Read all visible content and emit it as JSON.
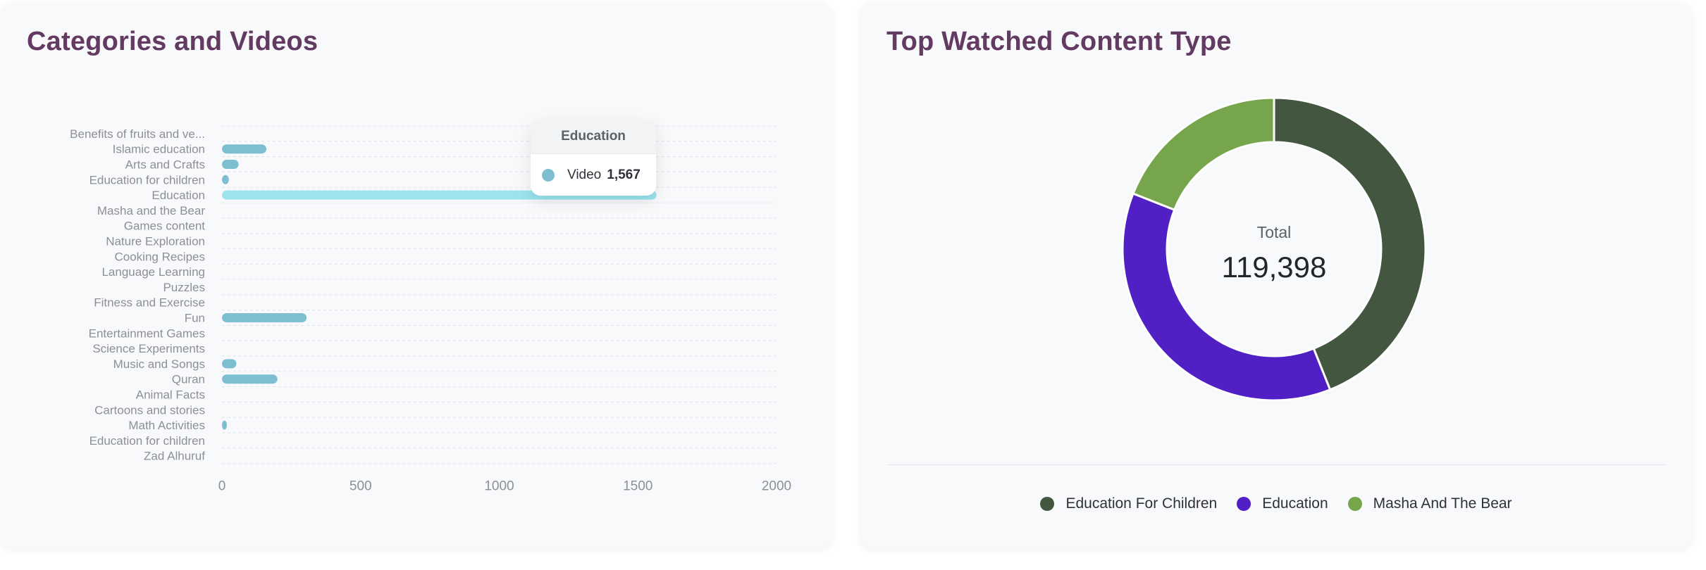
{
  "left_card": {
    "title": "Categories and Videos"
  },
  "right_card": {
    "title": "Top Watched Content Type"
  },
  "tooltip": {
    "title": "Education",
    "series": "Video",
    "value": "1,567",
    "color": "#7dbfd0"
  },
  "chart_data": [
    {
      "type": "bar",
      "orientation": "horizontal",
      "categories": [
        "Benefits of fruits and ve...",
        "Islamic education",
        "Arts and Crafts",
        "Education for children",
        "Education",
        "Masha and the Bear",
        "Games content",
        "Nature Exploration",
        "Cooking Recipes",
        "Language Learning",
        "Puzzles",
        "Fitness and Exercise",
        "Fun",
        "Entertainment Games",
        "Science Experiments",
        "Music and Songs",
        "Quran",
        "Animal Facts",
        "Cartoons and stories",
        "Math Activities",
        "Education for children",
        "Zad Alhuruf"
      ],
      "series": [
        {
          "name": "Video",
          "color": "#7dbfd0",
          "highlight_color": "#9be3ef",
          "values": [
            0,
            160,
            60,
            25,
            1567,
            0,
            0,
            0,
            0,
            0,
            0,
            0,
            305,
            0,
            0,
            52,
            200,
            0,
            0,
            12,
            0,
            0
          ]
        }
      ],
      "highlighted_index": 4,
      "xlim": [
        0,
        2000
      ],
      "xticks": [
        0,
        500,
        1000,
        1500,
        2000
      ],
      "grid": true
    },
    {
      "type": "pie",
      "style": "donut",
      "center_label": "Total",
      "center_value": "119,398",
      "slices": [
        {
          "label": "Education For Children",
          "value": 52500,
          "color": "#435740"
        },
        {
          "label": "Education",
          "value": 44200,
          "color": "#5120c4"
        },
        {
          "label": "Masha And The Bear",
          "value": 22698,
          "color": "#76a54c"
        }
      ],
      "legend_position": "bottom"
    }
  ]
}
